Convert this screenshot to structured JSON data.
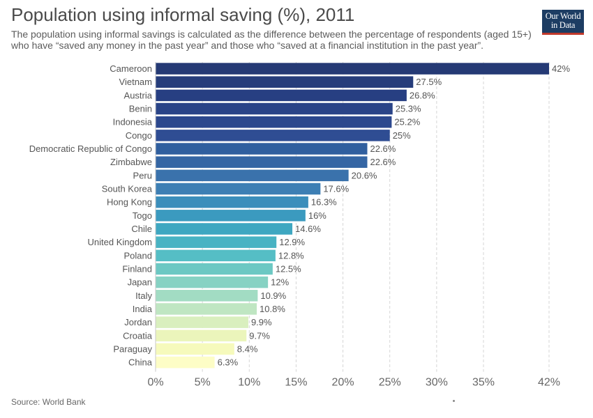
{
  "header": {
    "title": "Population using informal saving (%), 2011",
    "subtitle": "The population using informal savings is calculated as the difference between the percentage of respondents (aged 15+) who have “saved any money in the past year” and those who “saved at a financial institution in the past year”."
  },
  "logo": {
    "line1": "Our World",
    "line2": "in Data"
  },
  "footer": {
    "source": "Source: World Bank"
  },
  "chart_data": {
    "type": "bar",
    "orientation": "horizontal",
    "categories": [
      "Cameroon",
      "Vietnam",
      "Austria",
      "Benin",
      "Indonesia",
      "Congo",
      "Democratic Republic of Congo",
      "Zimbabwe",
      "Peru",
      "South Korea",
      "Hong Kong",
      "Togo",
      "Chile",
      "United Kingdom",
      "Poland",
      "Finland",
      "Japan",
      "Italy",
      "India",
      "Jordan",
      "Croatia",
      "Paraguay",
      "China"
    ],
    "values": [
      42,
      27.5,
      26.8,
      25.3,
      25.2,
      25,
      22.6,
      22.6,
      20.6,
      17.6,
      16.3,
      16,
      14.6,
      12.9,
      12.8,
      12.5,
      12,
      10.9,
      10.8,
      9.9,
      9.7,
      8.4,
      6.3
    ],
    "value_labels": [
      "42%",
      "27.5%",
      "26.8%",
      "25.3%",
      "25.2%",
      "25%",
      "22.6%",
      "22.6%",
      "20.6%",
      "17.6%",
      "16.3%",
      "16%",
      "14.6%",
      "12.9%",
      "12.8%",
      "12.5%",
      "12%",
      "10.9%",
      "10.8%",
      "9.9%",
      "9.7%",
      "8.4%",
      "6.3%"
    ],
    "xlim": [
      0,
      42
    ],
    "xticks": [
      0,
      5,
      10,
      15,
      20,
      25,
      30,
      35,
      42
    ],
    "xtick_labels": [
      "0%",
      "5%",
      "10%",
      "15%",
      "20%",
      "25%",
      "30%",
      "35%",
      "42%"
    ],
    "grid": "vertical dashed",
    "colors": [
      "#253a75",
      "#263d7b",
      "#273f82",
      "#2a4488",
      "#2c488e",
      "#2f4d93",
      "#305f9f",
      "#3566a4",
      "#3a72ac",
      "#3d7fb4",
      "#3b8ebb",
      "#3b9abf",
      "#3ea7c1",
      "#48b3c3",
      "#55bec5",
      "#6cc8c3",
      "#86d2c3",
      "#a2dcc3",
      "#bfe6c2",
      "#d9efbe",
      "#ebf5bb",
      "#f6fabc",
      "#fdfdc6"
    ]
  }
}
